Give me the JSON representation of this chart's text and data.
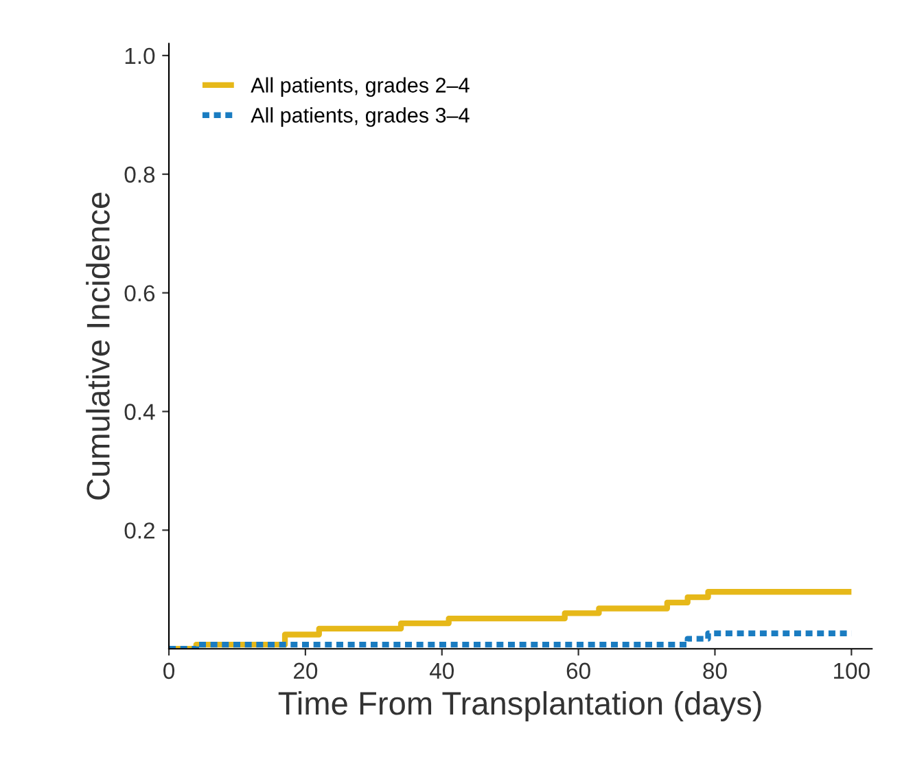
{
  "chart_data": {
    "type": "step",
    "xlabel": "Time From Transplantation (days)",
    "ylabel": "Cumulative Incidence",
    "xlim": [
      0,
      103
    ],
    "ylim": [
      0,
      1.02
    ],
    "xticks": [
      0,
      20,
      40,
      60,
      80,
      100
    ],
    "yticks": [
      0.2,
      0.4,
      0.6,
      0.8,
      {
        "value": 1,
        "label": "1.0"
      }
    ],
    "legend": "top left",
    "grid": false,
    "series": [
      {
        "name": "All patients, grades 2–4",
        "color": "#e6b819",
        "line_style": "solid",
        "x": [
          0,
          4,
          17,
          22,
          34,
          41,
          58,
          63,
          73,
          76,
          79,
          100
        ],
        "values": [
          0,
          0.007,
          0.024,
          0.034,
          0.043,
          0.051,
          0.06,
          0.068,
          0.078,
          0.087,
          0.096,
          0.096
        ]
      },
      {
        "name": "All patients, grades 3–4",
        "color": "#1a7cc1",
        "line_style": "dotted",
        "x": [
          0,
          4,
          76,
          79,
          100
        ],
        "values": [
          0,
          0.007,
          0.017,
          0.026,
          0.026
        ]
      }
    ]
  }
}
